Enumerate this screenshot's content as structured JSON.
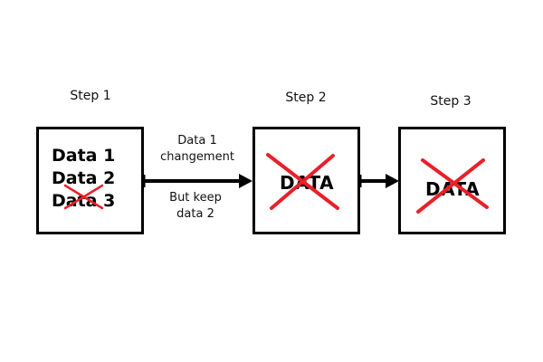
{
  "steps": [
    {
      "label": "Step 1",
      "items": [
        "Data 1",
        "Data 2",
        "Data 3"
      ],
      "crossed_item": "Data 3"
    },
    {
      "label": "Step 2",
      "content": "DATA",
      "crossed": true
    },
    {
      "label": "Step 3",
      "content": "DATA",
      "crossed": true
    }
  ],
  "arrow_1_note": {
    "line1": "Data 1",
    "line2": "changement",
    "line3": "But keep",
    "line4": "data 2"
  },
  "colors": {
    "cross": "#e8202a",
    "stroke": "#000000",
    "background": "#ffffff"
  }
}
